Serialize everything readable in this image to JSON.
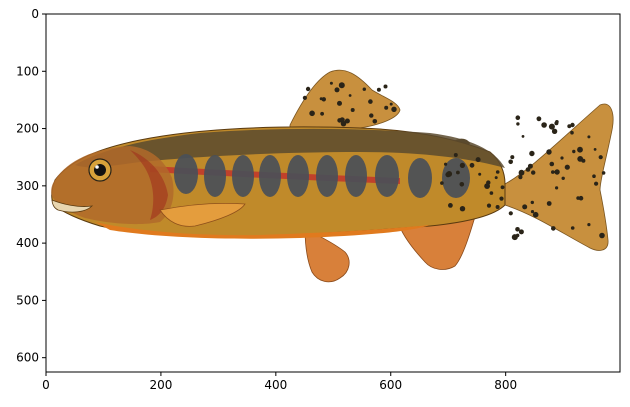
{
  "figure": {
    "subject": "fish-illustration",
    "x_axis": {
      "min": 0,
      "max": 999,
      "ticks": [
        0,
        200,
        400,
        600,
        800
      ]
    },
    "y_axis": {
      "min": 0,
      "max": 625,
      "inverted": true,
      "ticks": [
        0,
        100,
        200,
        300,
        400,
        500,
        600
      ]
    },
    "colors": {
      "frame": "#000000",
      "background": "#ffffff",
      "back": "#5a4a2e",
      "side": "#c08a2a",
      "belly": "#e07a1e",
      "stripe": "#c0392b",
      "parr_mark": "#4a5058",
      "spot": "#2a2418",
      "fin": "#c8903e",
      "fin_tip": "#ffffff"
    }
  }
}
